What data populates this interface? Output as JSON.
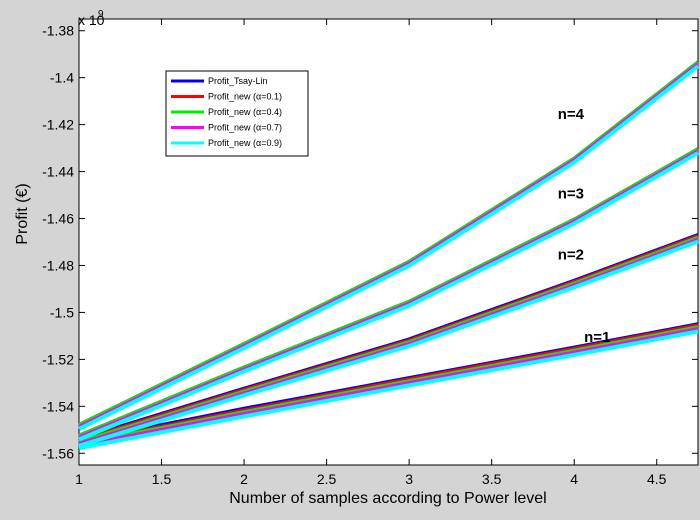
{
  "chart_data": {
    "type": "line",
    "xlabel": "Number of samples according to Power level",
    "ylabel": "Profit (€)",
    "y_exponent_label": "x 10",
    "y_exponent_power": "9",
    "xlim": [
      1,
      4.75
    ],
    "ylim": [
      -1.565,
      -1.375
    ],
    "x_ticks": [
      1,
      1.5,
      2,
      2.5,
      3,
      3.5,
      4,
      4.5
    ],
    "x_tick_labels": [
      "1",
      "1.5",
      "2",
      "2.5",
      "3",
      "3.5",
      "4",
      "4.5"
    ],
    "y_ticks": [
      -1.56,
      -1.54,
      -1.52,
      -1.5,
      -1.48,
      -1.46,
      -1.44,
      -1.42,
      -1.4,
      -1.38
    ],
    "y_tick_labels": [
      "-1.56",
      "-1.54",
      "-1.52",
      "-1.5",
      "-1.48",
      "-1.46",
      "-1.44",
      "-1.42",
      "-1.4",
      "-1.38"
    ],
    "grid": false,
    "legend_position": "top-left",
    "colors": {
      "Profit_Tsay-Lin": "#0000ff",
      "Profit_new (α=0.1)": "#ff0000",
      "Profit_new (α=0.4)": "#00ee00",
      "Profit_new (α=0.7)": "#ff00ff",
      "Profit_new (α=0.9)": "#00ffff"
    },
    "legend": [
      "Profit_Tsay-Lin",
      "Profit_new (α=0.1)",
      "Profit_new (α=0.4)",
      "Profit_new (α=0.7)",
      "Profit_new (α=0.9)"
    ],
    "groups": [
      {
        "label": "n=1",
        "label_x": 4.06,
        "label_y": -1.5125,
        "series": [
          {
            "name": "Profit_Tsay-Lin",
            "x": [
              1,
              2,
              3,
              4,
              4.75
            ],
            "y": [
              -1.555,
              -1.541,
              -1.528,
              -1.515,
              -1.505
            ]
          },
          {
            "name": "Profit_new (α=0.1)",
            "x": [
              1,
              2,
              3,
              4,
              4.75
            ],
            "y": [
              -1.5555,
              -1.5418,
              -1.5285,
              -1.5155,
              -1.5055
            ]
          },
          {
            "name": "Profit_new (α=0.4)",
            "x": [
              1,
              2,
              3,
              4,
              4.75
            ],
            "y": [
              -1.556,
              -1.5425,
              -1.5293,
              -1.5163,
              -1.5063
            ]
          },
          {
            "name": "Profit_new (α=0.7)",
            "x": [
              1,
              2,
              3,
              4,
              4.75
            ],
            "y": [
              -1.5568,
              -1.5433,
              -1.5301,
              -1.5171,
              -1.5071
            ]
          },
          {
            "name": "Profit_new (α=0.9)",
            "x": [
              1,
              2,
              3,
              4,
              4.75
            ],
            "y": [
              -1.5578,
              -1.5443,
              -1.5311,
              -1.5181,
              -1.5081
            ]
          }
        ]
      },
      {
        "label": "n=2",
        "label_x": 3.9,
        "label_y": -1.4775,
        "series": [
          {
            "name": "Profit_Tsay-Lin",
            "x": [
              1,
              2,
              3,
              4,
              4.75
            ],
            "y": [
              -1.554,
              -1.5325,
              -1.5115,
              -1.4865,
              -1.467
            ]
          },
          {
            "name": "Profit_new (α=0.1)",
            "x": [
              1,
              2,
              3,
              4,
              4.75
            ],
            "y": [
              -1.5545,
              -1.533,
              -1.512,
              -1.487,
              -1.4675
            ]
          },
          {
            "name": "Profit_new (α=0.4)",
            "x": [
              1,
              2,
              3,
              4,
              4.75
            ],
            "y": [
              -1.5552,
              -1.5337,
              -1.5127,
              -1.4877,
              -1.4682
            ]
          },
          {
            "name": "Profit_new (α=0.7)",
            "x": [
              1,
              2,
              3,
              4,
              4.75
            ],
            "y": [
              -1.556,
              -1.5345,
              -1.5135,
              -1.4885,
              -1.469
            ]
          },
          {
            "name": "Profit_new (α=0.9)",
            "x": [
              1,
              2,
              3,
              4,
              4.75
            ],
            "y": [
              -1.5568,
              -1.5353,
              -1.5143,
              -1.4893,
              -1.4698
            ]
          }
        ]
      },
      {
        "label": "n=3",
        "label_x": 3.9,
        "label_y": -1.4515,
        "series": [
          {
            "name": "Profit_Tsay-Lin",
            "x": [
              1,
              2,
              3,
              4,
              4.75
            ],
            "y": [
              -1.5525,
              -1.5235,
              -1.4955,
              -1.4605,
              -1.4305
            ]
          },
          {
            "name": "Profit_new (α=0.1)",
            "x": [
              1,
              2,
              3,
              4,
              4.75
            ],
            "y": [
              -1.5525,
              -1.5235,
              -1.4955,
              -1.4605,
              -1.4305
            ]
          },
          {
            "name": "Profit_new (α=0.4)",
            "x": [
              1,
              2,
              3,
              4,
              4.75
            ],
            "y": [
              -1.5525,
              -1.5235,
              -1.4955,
              -1.4605,
              -1.4305
            ]
          },
          {
            "name": "Profit_new (α=0.7)",
            "x": [
              1,
              2,
              3,
              4,
              4.75
            ],
            "y": [
              -1.5533,
              -1.5243,
              -1.4963,
              -1.4613,
              -1.4313
            ]
          },
          {
            "name": "Profit_new (α=0.9)",
            "x": [
              1,
              2,
              3,
              4,
              4.75
            ],
            "y": [
              -1.5541,
              -1.5251,
              -1.4971,
              -1.4621,
              -1.4321
            ]
          }
        ]
      },
      {
        "label": "n=4",
        "label_x": 3.9,
        "label_y": -1.4175,
        "series": [
          {
            "name": "Profit_Tsay-Lin",
            "x": [
              1,
              2,
              3,
              4,
              4.75
            ],
            "y": [
              -1.548,
              -1.5135,
              -1.4785,
              -1.4345,
              -1.3935
            ]
          },
          {
            "name": "Profit_new (α=0.1)",
            "x": [
              1,
              2,
              3,
              4,
              4.75
            ],
            "y": [
              -1.548,
              -1.5135,
              -1.4785,
              -1.4345,
              -1.3935
            ]
          },
          {
            "name": "Profit_new (α=0.4)",
            "x": [
              1,
              2,
              3,
              4,
              4.75
            ],
            "y": [
              -1.548,
              -1.5135,
              -1.4785,
              -1.4345,
              -1.3935
            ]
          },
          {
            "name": "Profit_new (α=0.7)",
            "x": [
              1,
              2,
              3,
              4,
              4.75
            ],
            "y": [
              -1.5488,
              -1.5143,
              -1.4793,
              -1.4353,
              -1.3943
            ]
          },
          {
            "name": "Profit_new (α=0.9)",
            "x": [
              1,
              2,
              3,
              4,
              4.75
            ],
            "y": [
              -1.5496,
              -1.5151,
              -1.4801,
              -1.4361,
              -1.3951
            ]
          }
        ]
      }
    ]
  }
}
